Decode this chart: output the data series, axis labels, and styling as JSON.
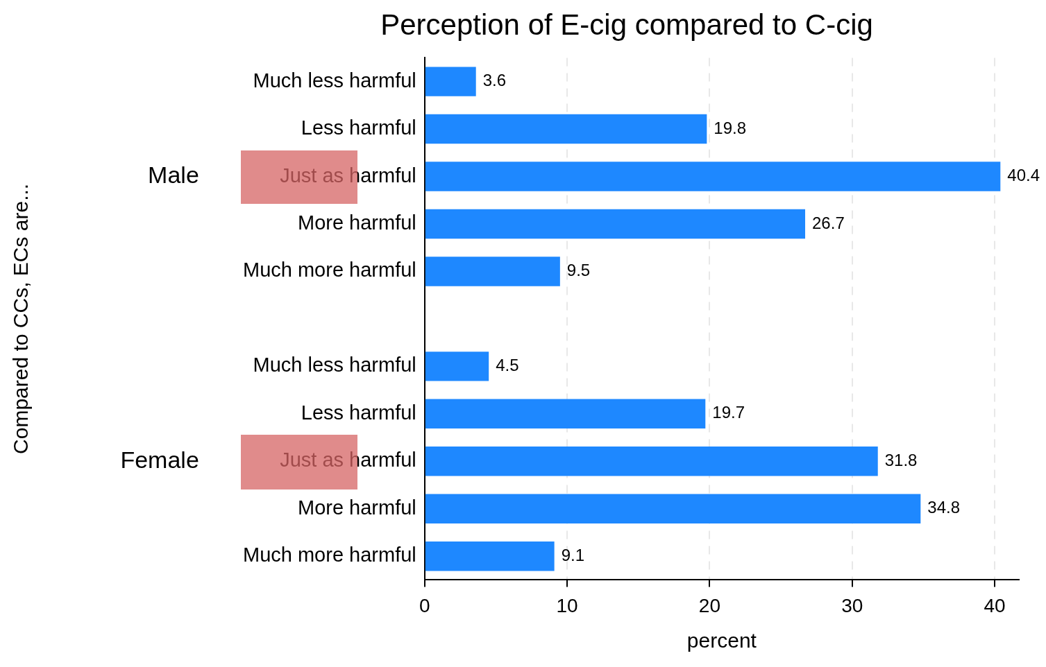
{
  "chart_data": {
    "type": "bar",
    "orientation": "horizontal",
    "title": "Perception of E-cig compared to C-cig",
    "xlabel": "percent",
    "categories": [
      "Much less harmful",
      "Less harmful",
      "Just as harmful",
      "More harmful",
      "Much more harmful",
      null,
      "Much less harmful",
      "Less harmful",
      "Just as harmful",
      "More harmful",
      "Much more harmful"
    ],
    "values": [
      3.6,
      19.8,
      40.4,
      26.7,
      9.5,
      null,
      4.5,
      19.7,
      31.8,
      34.8,
      9.1
    ],
    "color": "#1e88ff",
    "xlim": [
      0,
      41.7
    ],
    "xticks": [
      0,
      10,
      20,
      30,
      40
    ],
    "grid": "x",
    "legend": false,
    "data_labels": true,
    "annotations": [
      "Male",
      "Female",
      "Compared to CCs, ECs are..."
    ]
  }
}
